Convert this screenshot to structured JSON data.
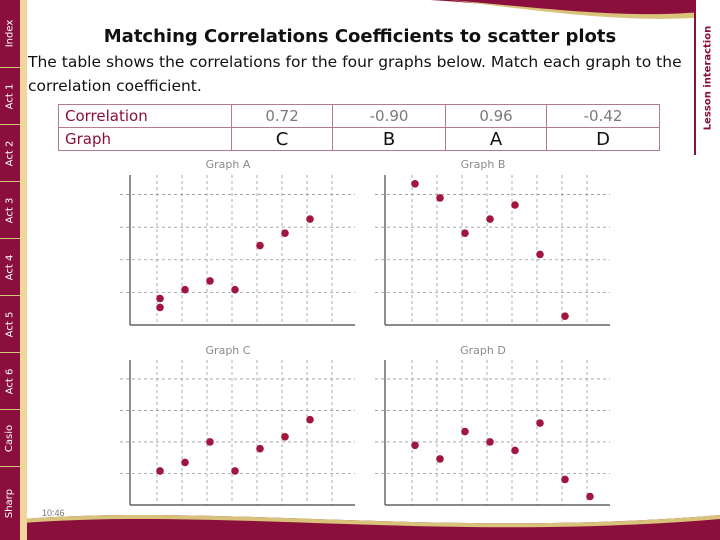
{
  "nav": {
    "left_tabs": [
      "Index",
      "Act 1",
      "Act 2",
      "Act 3",
      "Act 4",
      "Act 5",
      "Act 6",
      "Casio",
      "Sharp"
    ],
    "right_link": "Lesson interaction"
  },
  "slide": {
    "title": "Matching Correlations Coefficients to scatter plots",
    "intro": "The table shows the correlations for the four graphs below. Match each graph to the correlation coefficient."
  },
  "table": {
    "row1_label": "Correlation",
    "row2_label": "Graph",
    "correlations": [
      "0.72",
      "-0.90",
      "0.96",
      "-0.42"
    ],
    "answers": [
      "C",
      "B",
      "A",
      "D"
    ]
  },
  "graphs": [
    {
      "title": "Graph A",
      "points": [
        [
          1,
          1
        ],
        [
          1,
          1.5
        ],
        [
          2,
          2
        ],
        [
          3,
          2.5
        ],
        [
          4,
          2
        ],
        [
          5,
          4.5
        ],
        [
          6,
          5.2
        ],
        [
          7,
          6
        ]
      ]
    },
    {
      "title": "Graph B",
      "points": [
        [
          1,
          8
        ],
        [
          2,
          7.2
        ],
        [
          3,
          5.2
        ],
        [
          4,
          6
        ],
        [
          5,
          6.8
        ],
        [
          6,
          4
        ],
        [
          7,
          0.5
        ]
      ]
    },
    {
      "title": "Graph C",
      "points": [
        [
          1,
          2
        ],
        [
          2,
          2.5
        ],
        [
          3,
          3.7
        ],
        [
          4,
          2
        ],
        [
          5,
          3.3
        ],
        [
          6,
          4
        ],
        [
          7,
          5
        ]
      ]
    },
    {
      "title": "Graph D",
      "points": [
        [
          1,
          3.5
        ],
        [
          2,
          2.7
        ],
        [
          3,
          4.3
        ],
        [
          4,
          3.7
        ],
        [
          5,
          3.2
        ],
        [
          6,
          4.8
        ],
        [
          7,
          1.5
        ],
        [
          8,
          0.5
        ]
      ]
    }
  ],
  "colors": {
    "brand": "#8a0f3c",
    "accent": "#f2d59a",
    "point": "#a0163e",
    "gold": "#d9c27a"
  },
  "footer": {
    "time": "10:46"
  }
}
